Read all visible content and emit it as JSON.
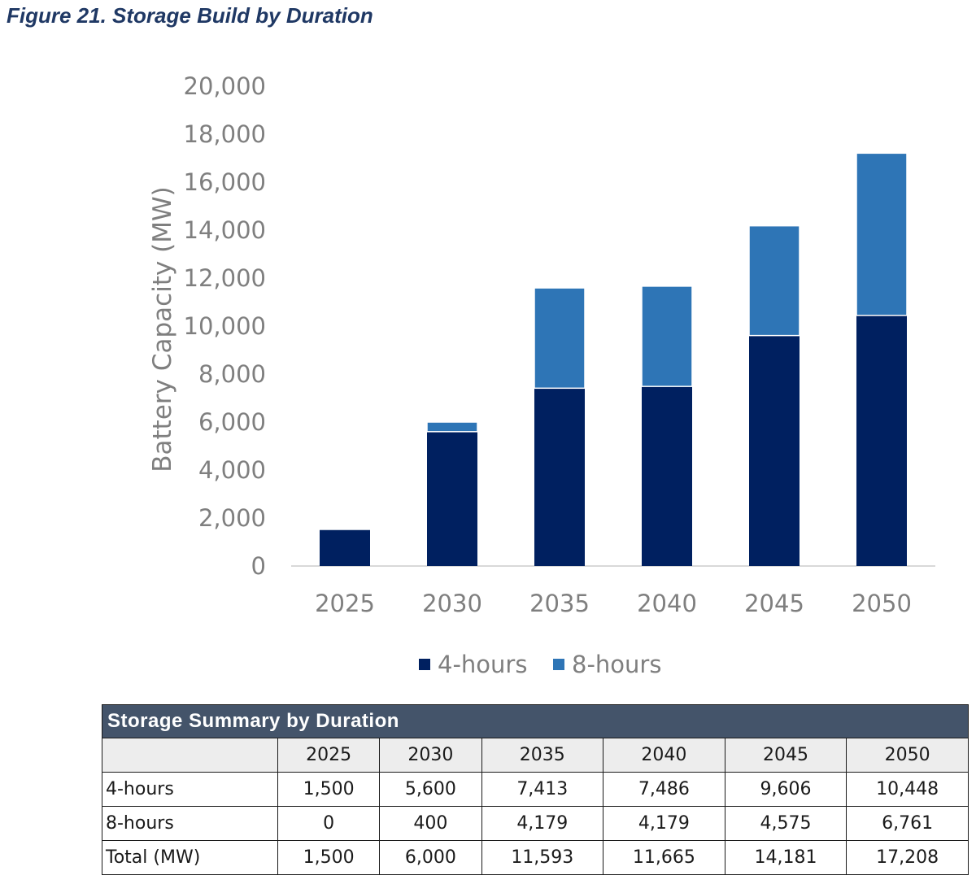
{
  "figure_caption": "Figure 21. Storage Build by Duration",
  "chart_data": {
    "type": "bar",
    "stacked": true,
    "categories": [
      "2025",
      "2030",
      "2035",
      "2040",
      "2045",
      "2050"
    ],
    "series": [
      {
        "name": "4-hours",
        "values": [
          1500,
          5600,
          7413,
          7486,
          9606,
          10448
        ],
        "color": "#002060"
      },
      {
        "name": "8-hours",
        "values": [
          0,
          400,
          4179,
          4179,
          4575,
          6761
        ],
        "color": "#2e75b6"
      }
    ],
    "ylabel": "Battery Capacity (MW)",
    "xlabel": "",
    "ylim": [
      0,
      20000
    ],
    "yticks": [
      "0",
      "2,000",
      "4,000",
      "6,000",
      "8,000",
      "10,000",
      "12,000",
      "14,000",
      "16,000",
      "18,000",
      "20,000"
    ],
    "grid": false,
    "legend_position": "bottom"
  },
  "table": {
    "title": "Storage Summary by Duration",
    "columns": [
      "",
      "2025",
      "2030",
      "2035",
      "2040",
      "2045",
      "2050"
    ],
    "rows": [
      [
        "4-hours",
        "1,500",
        "5,600",
        "7,413",
        "7,486",
        "9,606",
        "10,448"
      ],
      [
        "8-hours",
        "0",
        "400",
        "4,179",
        "4,179",
        "4,575",
        "6,761"
      ],
      [
        "Total (MW)",
        "1,500",
        "6,000",
        "11,593",
        "11,665",
        "14,181",
        "17,208"
      ]
    ]
  }
}
